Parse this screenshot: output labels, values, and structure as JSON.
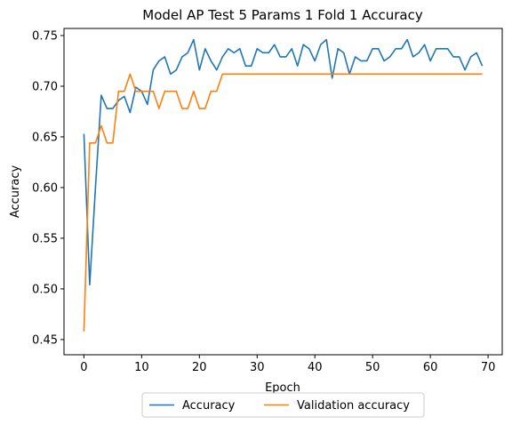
{
  "chart_data": {
    "type": "line",
    "title": "Model AP Test 5 Params 1 Fold 1 Accuracy",
    "xlabel": "Epoch",
    "ylabel": "Accuracy",
    "xlim": [
      -3.45,
      72.45
    ],
    "ylim": [
      0.435,
      0.757
    ],
    "xticks": [
      0,
      10,
      20,
      30,
      40,
      50,
      60,
      70
    ],
    "yticks": [
      0.45,
      0.5,
      0.55,
      0.6,
      0.65,
      0.7,
      0.75
    ],
    "ytick_labels": [
      "0.45",
      "0.50",
      "0.55",
      "0.60",
      "0.65",
      "0.70",
      "0.75"
    ],
    "legend_position": "below-center",
    "grid": false,
    "series": [
      {
        "name": "Accuracy",
        "color": "#1f77b4",
        "values": [
          0.653,
          0.504,
          0.6,
          0.691,
          0.678,
          0.678,
          0.686,
          0.69,
          0.674,
          0.699,
          0.695,
          0.682,
          0.716,
          0.725,
          0.729,
          0.712,
          0.716,
          0.729,
          0.733,
          0.746,
          0.716,
          0.737,
          0.725,
          0.716,
          0.729,
          0.737,
          0.733,
          0.737,
          0.72,
          0.72,
          0.737,
          0.733,
          0.733,
          0.741,
          0.729,
          0.729,
          0.737,
          0.72,
          0.741,
          0.737,
          0.725,
          0.741,
          0.746,
          0.708,
          0.737,
          0.733,
          0.712,
          0.729,
          0.725,
          0.725,
          0.737,
          0.737,
          0.725,
          0.729,
          0.737,
          0.737,
          0.746,
          0.729,
          0.733,
          0.741,
          0.725,
          0.737,
          0.737,
          0.737,
          0.729,
          0.729,
          0.716,
          0.729,
          0.733,
          0.72
        ]
      },
      {
        "name": "Validation accuracy",
        "color": "#ff7f0e",
        "values": [
          0.458,
          0.644,
          0.644,
          0.661,
          0.644,
          0.644,
          0.695,
          0.695,
          0.712,
          0.695,
          0.695,
          0.695,
          0.695,
          0.678,
          0.695,
          0.695,
          0.695,
          0.678,
          0.678,
          0.695,
          0.678,
          0.678,
          0.695,
          0.695,
          0.712,
          0.712,
          0.712,
          0.712,
          0.712,
          0.712,
          0.712,
          0.712,
          0.712,
          0.712,
          0.712,
          0.712,
          0.712,
          0.712,
          0.712,
          0.712,
          0.712,
          0.712,
          0.712,
          0.712,
          0.712,
          0.712,
          0.712,
          0.712,
          0.712,
          0.712,
          0.712,
          0.712,
          0.712,
          0.712,
          0.712,
          0.712,
          0.712,
          0.712,
          0.712,
          0.712,
          0.712,
          0.712,
          0.712,
          0.712,
          0.712,
          0.712,
          0.712,
          0.712,
          0.712,
          0.712
        ]
      }
    ]
  }
}
